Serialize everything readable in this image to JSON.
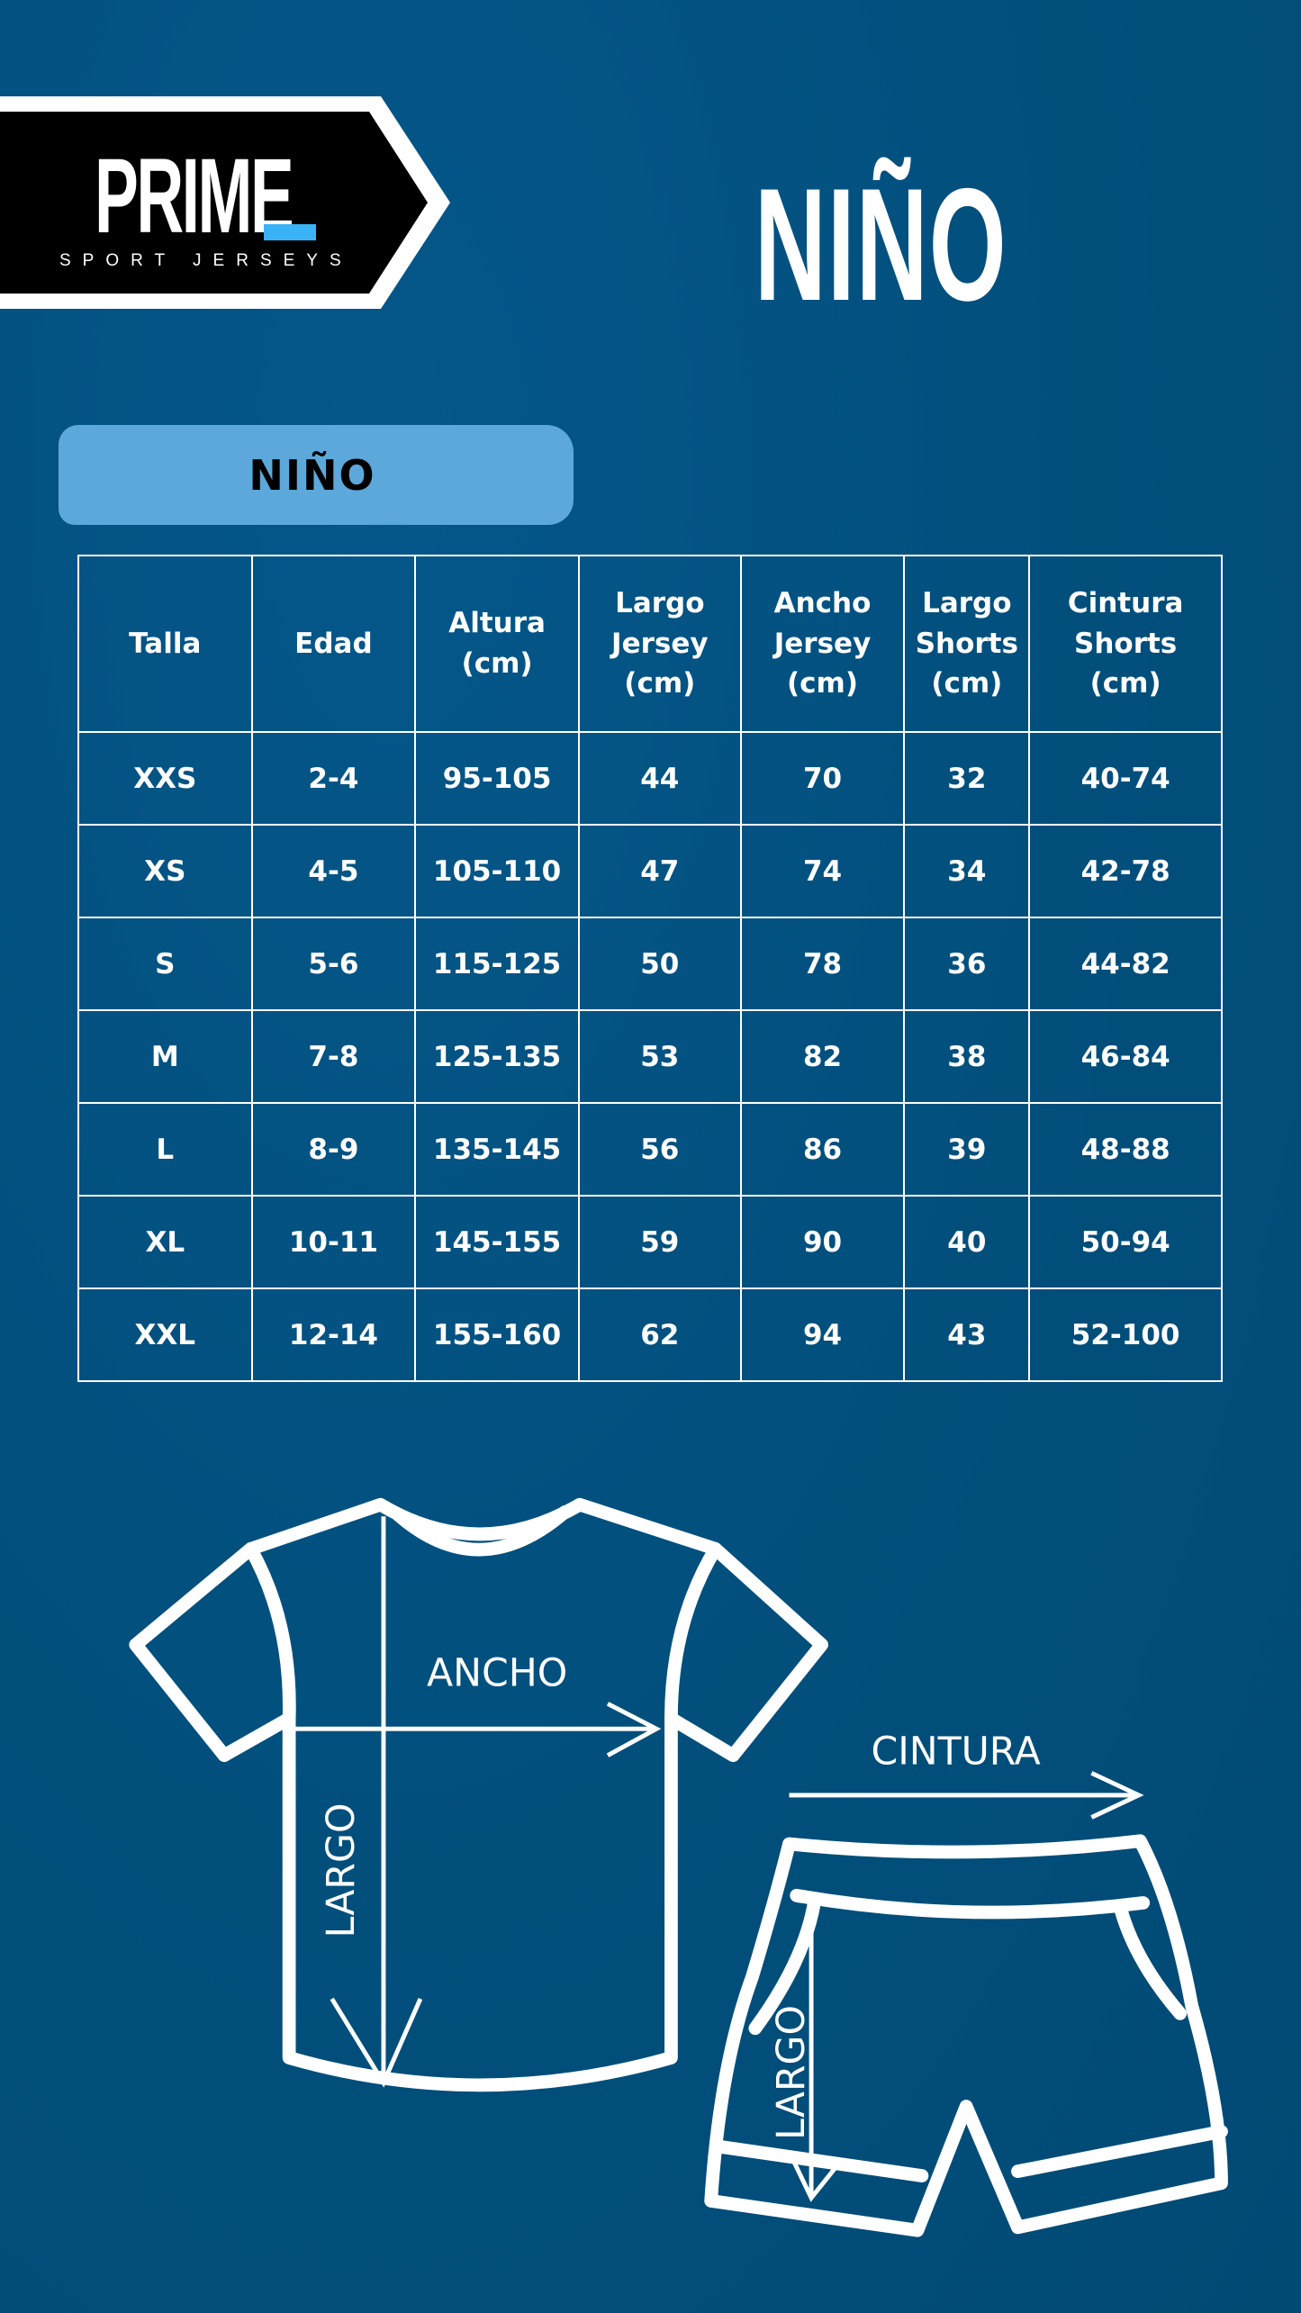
{
  "logo": {
    "brand": "PRIME",
    "tagline": "SPORT JERSEYS",
    "accent_color": "#39b3f5"
  },
  "title": "NIÑO",
  "section_badge": {
    "label": "NIÑO",
    "color": "#5ca8da"
  },
  "table": {
    "headers": [
      "Talla",
      "Edad",
      "Altura\n(cm)",
      "Largo\nJersey\n(cm)",
      "Ancho\nJersey\n(cm)",
      "Largo\nShorts\n(cm)",
      "Cintura\nShorts\n(cm)"
    ],
    "rows": [
      [
        "XXS",
        "2-4",
        "95-105",
        "44",
        "70",
        "32",
        "40-74"
      ],
      [
        "XS",
        "4-5",
        "105-110",
        "47",
        "74",
        "34",
        "42-78"
      ],
      [
        "S",
        "5-6",
        "115-125",
        "50",
        "78",
        "36",
        "44-82"
      ],
      [
        "M",
        "7-8",
        "125-135",
        "53",
        "82",
        "38",
        "46-84"
      ],
      [
        "L",
        "8-9",
        "135-145",
        "56",
        "86",
        "39",
        "48-88"
      ],
      [
        "XL",
        "10-11",
        "145-155",
        "59",
        "90",
        "40",
        "50-94"
      ],
      [
        "XXL",
        "12-14",
        "155-160",
        "62",
        "94",
        "43",
        "52-100"
      ]
    ]
  },
  "diagram": {
    "jersey_width_label": "ANCHO",
    "jersey_length_label": "LARGO",
    "shorts_waist_label": "CINTURA",
    "shorts_length_label": "LARGO"
  },
  "colors": {
    "background": "#02507e",
    "lines": "#ffffff"
  }
}
